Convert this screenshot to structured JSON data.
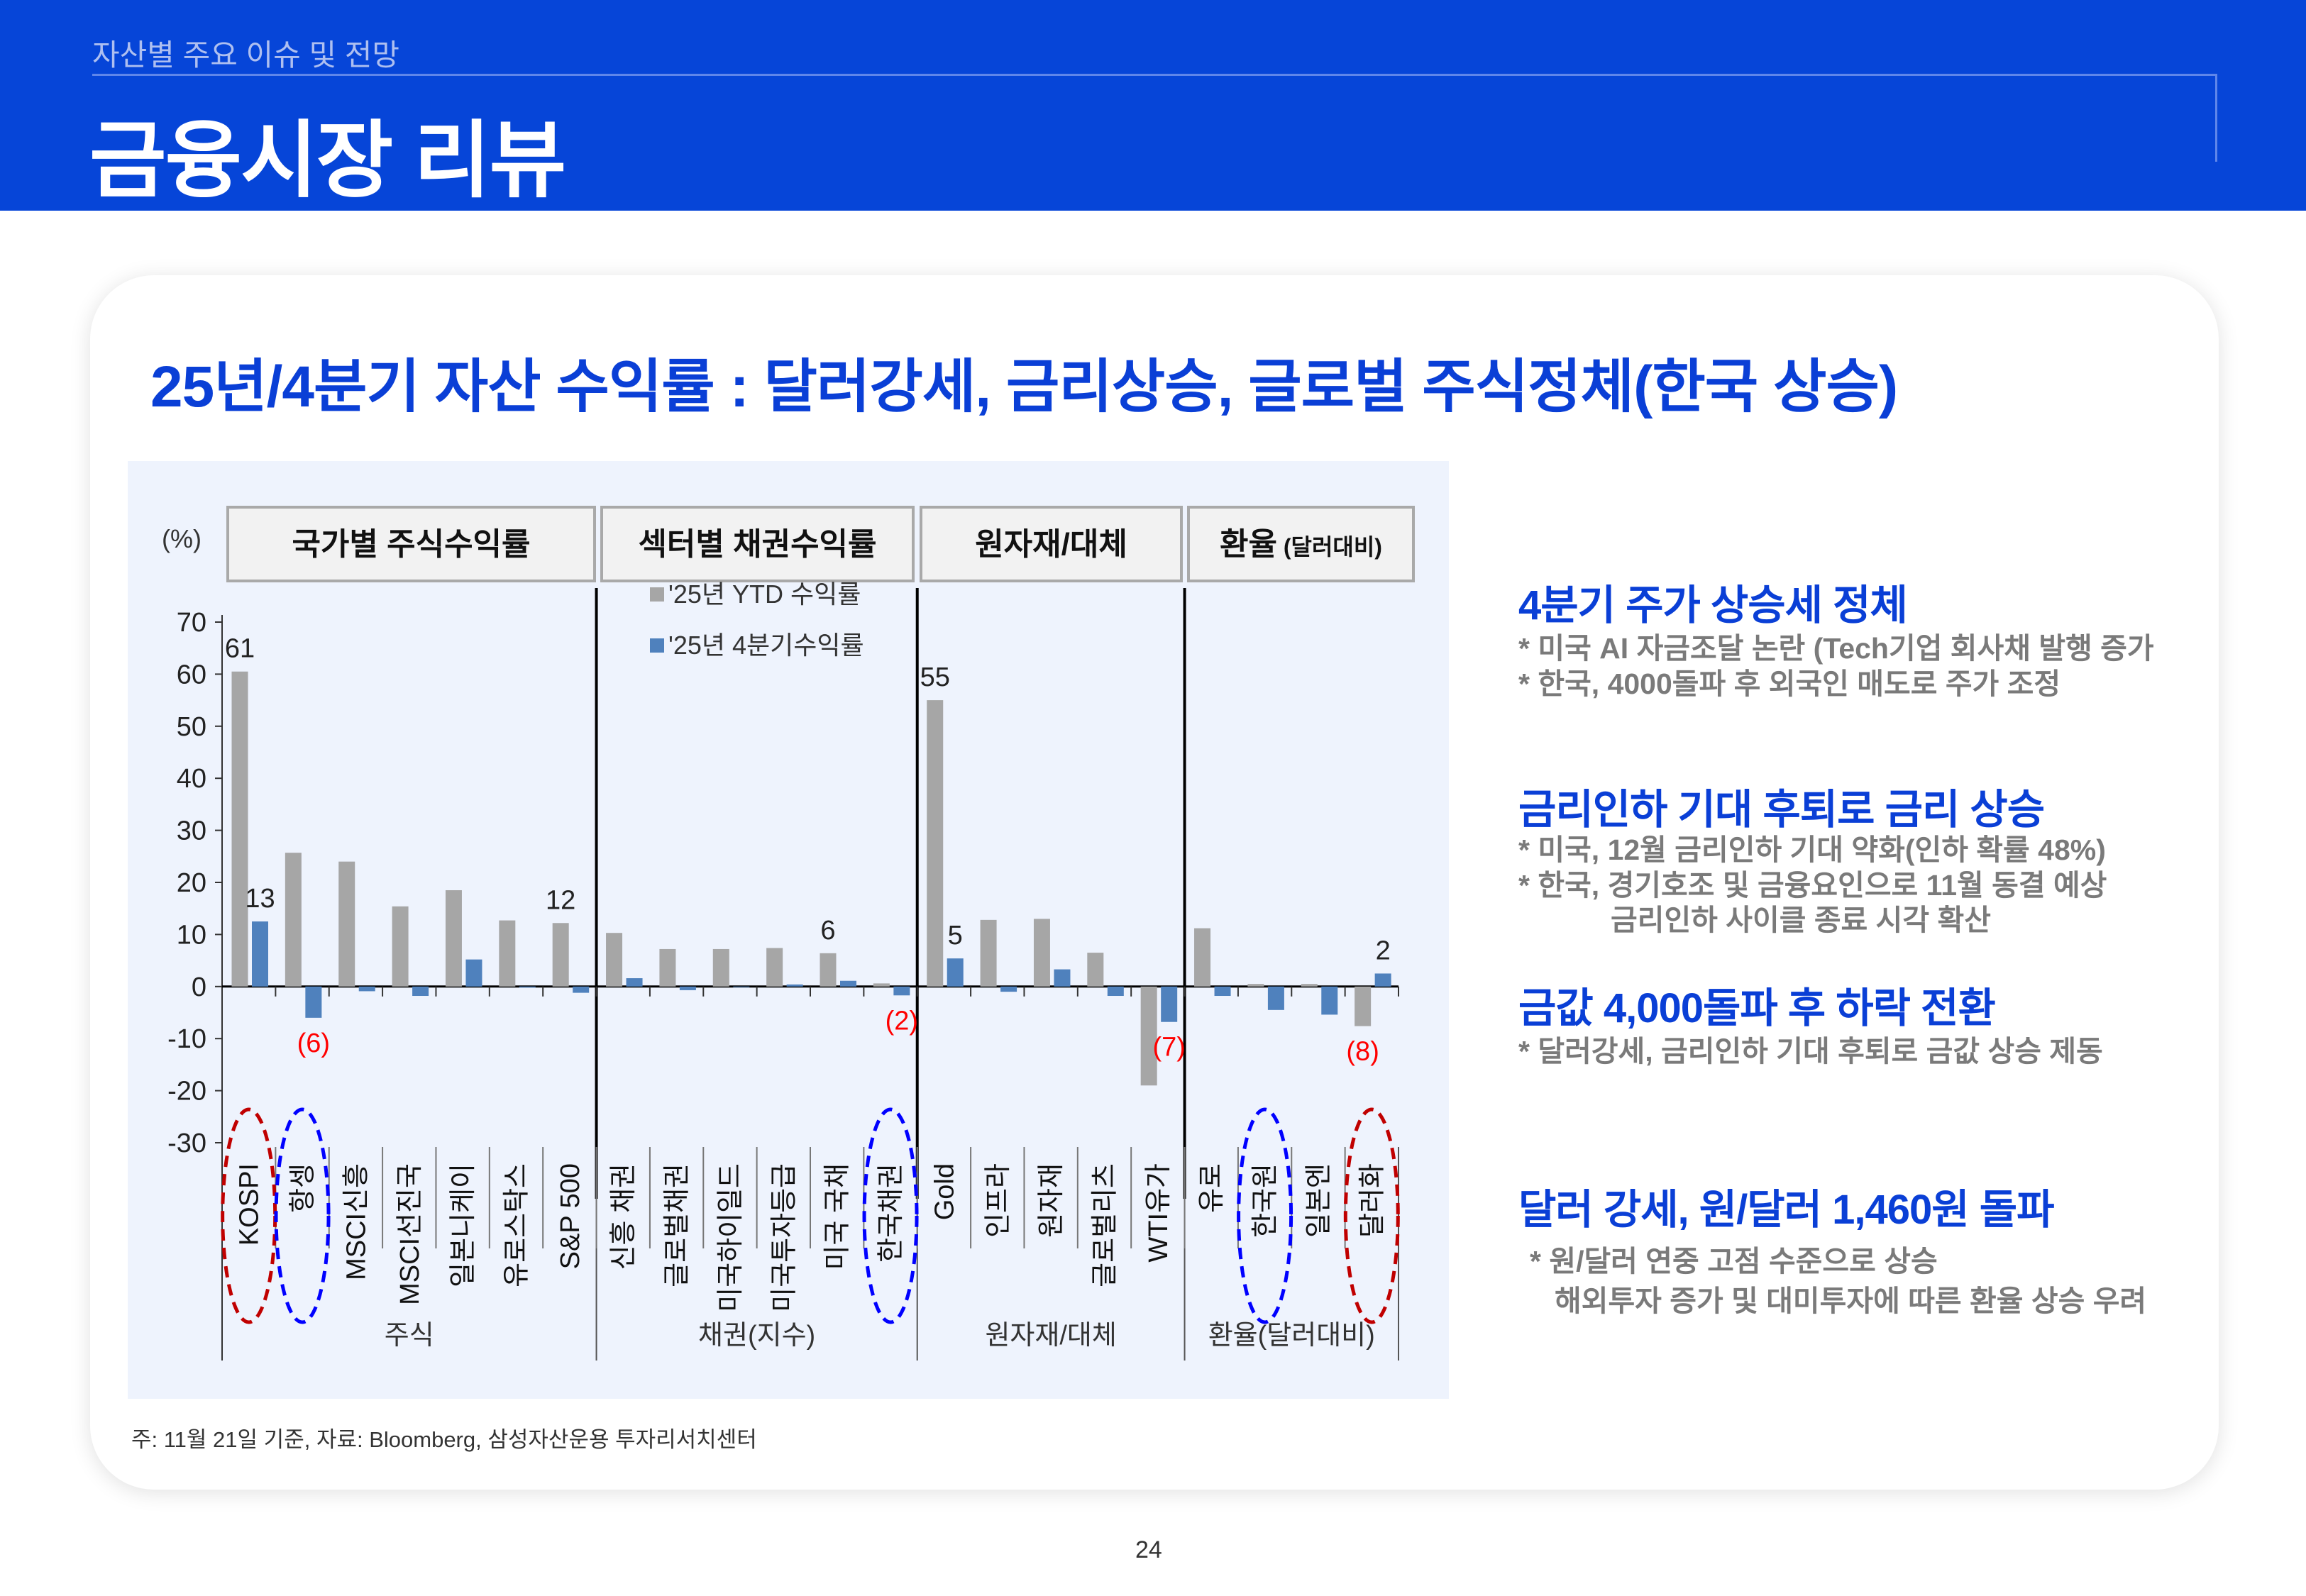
{
  "header": {
    "section": "자산별 주요 이슈 및 전망",
    "title": "금융시장 리뷰"
  },
  "main_heading": "25년/4분기 자산 수익률 : 달러강세, 금리상승, 글로벌 주식정체(한국 상승)",
  "chart_data": {
    "type": "bar",
    "unit_label": "(%)",
    "ylim": [
      -30,
      70
    ],
    "yticks": [
      70,
      60,
      50,
      40,
      30,
      20,
      10,
      0,
      -10,
      -20,
      -30
    ],
    "grid": false,
    "legend_placement": "top-center",
    "header_boxes": [
      {
        "label": "국가별 주식수익률",
        "suffix": ""
      },
      {
        "label": "섹터별 채권수익률",
        "suffix": ""
      },
      {
        "label": "원자재/대체",
        "suffix": ""
      },
      {
        "label": "환율",
        "suffix": "(달러대비)"
      }
    ],
    "groups": [
      {
        "label": "주식",
        "count": 7
      },
      {
        "label": "채권(지수)",
        "count": 6
      },
      {
        "label": "원자재/대체",
        "count": 5
      },
      {
        "label": "환율(달러대비)",
        "count": 4
      }
    ],
    "categories": [
      "KOSPI",
      "항셍",
      "MSCI신흥",
      "MSCI선진국",
      "일본니케이",
      "유로스탁스",
      "S&P 500",
      "신흥 채권",
      "글로벌채권",
      "미국하이일드",
      "미국투자등급",
      "미국 국채",
      "한국채권",
      "Gold",
      "인프라",
      "원자재",
      "글로벌리츠",
      "WTI유가",
      "유로",
      "한국원",
      "일본엔",
      "달러화"
    ],
    "series": [
      {
        "name": "'25년 YTD 수익률",
        "color": "#a6a6a6",
        "values": [
          60.5,
          25.7,
          24.0,
          15.4,
          18.5,
          12.7,
          12.2,
          10.3,
          7.2,
          7.2,
          7.4,
          6.4,
          0.6,
          55.0,
          12.8,
          13.0,
          6.5,
          -19.0,
          11.2,
          0.5,
          0.5,
          -7.6
        ]
      },
      {
        "name": "'25년 4분기수익률",
        "color": "#4f81bd",
        "values": [
          12.5,
          -6.0,
          -0.9,
          -1.8,
          5.2,
          -0.2,
          -1.2,
          1.6,
          -0.7,
          0.0,
          0.4,
          1.1,
          -1.7,
          5.4,
          -1.0,
          3.3,
          -1.8,
          -6.8,
          -1.8,
          -4.5,
          -5.4,
          2.5
        ]
      }
    ],
    "data_labels": [
      {
        "category": 0,
        "series": 0,
        "text": "61",
        "color": "#222222"
      },
      {
        "category": 0,
        "series": 1,
        "text": "13",
        "color": "#222222"
      },
      {
        "category": 1,
        "series": 1,
        "text": "(6)",
        "color": "#ff0000"
      },
      {
        "category": 6,
        "series": 0,
        "text": "12",
        "color": "#222222"
      },
      {
        "category": 11,
        "series": 0,
        "text": "6",
        "color": "#222222"
      },
      {
        "category": 12,
        "series": 1,
        "text": "(2)",
        "color": "#ff0000"
      },
      {
        "category": 13,
        "series": 0,
        "text": "55",
        "color": "#222222"
      },
      {
        "category": 13,
        "series": 1,
        "text": "5",
        "color": "#222222"
      },
      {
        "category": 17,
        "series": 1,
        "text": "(7)",
        "color": "#ff0000"
      },
      {
        "category": 21,
        "series": 0,
        "text": "(8)",
        "color": "#ff0000"
      },
      {
        "category": 21,
        "series": 1,
        "text": "2",
        "color": "#222222"
      }
    ],
    "highlights": [
      {
        "category": 0,
        "color": "#c00000"
      },
      {
        "category": 1,
        "color": "#0000ff"
      },
      {
        "category": 12,
        "color": "#0000ff"
      },
      {
        "category": 19,
        "color": "#0000ff"
      },
      {
        "category": 21,
        "color": "#c00000"
      }
    ]
  },
  "footnote": "주: 11월 21일 기준, 자료: Bloomberg, 삼성자산운용 투자리서치센터",
  "insights": [
    {
      "title": "4분기 주가 상승세 정체",
      "lines": [
        "* 미국 AI 자금조달 논란 (Tech기업 회사채 발행 증가",
        "* 한국, 4000돌파 후 외국인 매도로 주가 조정"
      ]
    },
    {
      "title": "금리인하 기대 후퇴로 금리 상승",
      "lines": [
        "* 미국, 12월 금리인하 기대 약화(인하 확률 48%)",
        "* 한국, 경기호조 및 금융요인으로 11월 동결 예상",
        "금리인하 사이클 종료 시각 확산"
      ]
    },
    {
      "title": "금값 4,000돌파 후 하락 전환",
      "lines": [
        "* 달러강세, 금리인하 기대 후퇴로 금값 상승 제동"
      ]
    },
    {
      "title": "달러 강세, 원/달러 1,460원 돌파",
      "lines": [
        "* 원/달러 연중 고점 수준으로 상승",
        "해외투자 증가 및 대미투자에 따른 환율 상승 우려"
      ]
    }
  ],
  "page_number": "24",
  "colors": {
    "brand_blue": "#0645d8",
    "heading_blue": "#0a3fd6",
    "panel_bg": "#eef3fd"
  }
}
